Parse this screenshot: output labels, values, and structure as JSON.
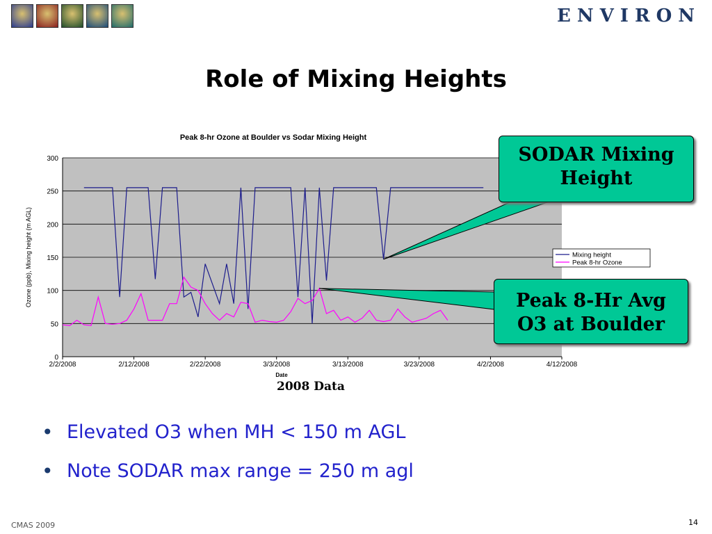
{
  "header": {
    "brand": "ENVIRON",
    "thumbnails": [
      {
        "name": "globe-thumbnail",
        "color": "#2a3b8f"
      },
      {
        "name": "dna-thumbnail",
        "color": "#8a1f1f"
      },
      {
        "name": "industry-thumbnail",
        "color": "#1f4d2a"
      },
      {
        "name": "ship-thumbnail",
        "color": "#1a4b7a"
      },
      {
        "name": "balloon-thumbnail",
        "color": "#1f6b6b"
      }
    ]
  },
  "slide": {
    "title": "Role of Mixing Heights",
    "caption": "2008 Data",
    "callout_sodar": [
      "SODAR Mixing",
      "Height"
    ],
    "callout_ozone": [
      "Peak 8-Hr Avg",
      "O3 at Boulder"
    ],
    "bullets": [
      "Elevated O3 when MH < 150 m AGL",
      "Note SODAR max range = 250 m agl"
    ],
    "footer_left": "CMAS 2009",
    "page_number": "14"
  },
  "chart_data": {
    "type": "line",
    "title": "Peak 8-hr Ozone at Boulder vs Sodar Mixing Height",
    "xlabel": "Date",
    "ylabel": "Ozone (ppb), Mixing height (m AGL)",
    "x_axis": "date",
    "xlim": [
      "2/2/2008",
      "4/12/2008"
    ],
    "xticks": [
      "2/2/2008",
      "2/12/2008",
      "2/22/2008",
      "3/3/2008",
      "3/13/2008",
      "3/23/2008",
      "4/2/2008",
      "4/12/2008"
    ],
    "ylim": [
      0,
      300
    ],
    "yticks": [
      0,
      50,
      100,
      150,
      200,
      250,
      300
    ],
    "grid": true,
    "legend": "right",
    "background": "#c0c0c0",
    "series": [
      {
        "name": "Mixing height",
        "color": "#1c1c8c",
        "points": [
          [
            "2/5/2008",
            255
          ],
          [
            "2/6/2008",
            255
          ],
          [
            "2/7/2008",
            255
          ],
          [
            "2/8/2008",
            255
          ],
          [
            "2/9/2008",
            255
          ],
          [
            "2/10/2008",
            90
          ],
          [
            "2/11/2008",
            255
          ],
          [
            "2/12/2008",
            255
          ],
          [
            "2/13/2008",
            255
          ],
          [
            "2/14/2008",
            255
          ],
          [
            "2/15/2008",
            117
          ],
          [
            "2/16/2008",
            255
          ],
          [
            "2/17/2008",
            255
          ],
          [
            "2/18/2008",
            255
          ],
          [
            "2/19/2008",
            90
          ],
          [
            "2/20/2008",
            97
          ],
          [
            "2/21/2008",
            60
          ],
          [
            "2/22/2008",
            140
          ],
          [
            "2/23/2008",
            110
          ],
          [
            "2/24/2008",
            80
          ],
          [
            "2/25/2008",
            140
          ],
          [
            "2/26/2008",
            80
          ],
          [
            "2/27/2008",
            255
          ],
          [
            "2/28/2008",
            72
          ],
          [
            "2/29/2008",
            255
          ],
          [
            "3/1/2008",
            255
          ],
          [
            "3/2/2008",
            255
          ],
          [
            "3/3/2008",
            255
          ],
          [
            "3/4/2008",
            255
          ],
          [
            "3/5/2008",
            255
          ],
          [
            "3/6/2008",
            90
          ],
          [
            "3/7/2008",
            255
          ],
          [
            "3/8/2008",
            50
          ],
          [
            "3/9/2008",
            255
          ],
          [
            "3/10/2008",
            115
          ],
          [
            "3/11/2008",
            255
          ],
          [
            "3/12/2008",
            255
          ],
          [
            "3/13/2008",
            255
          ],
          [
            "3/14/2008",
            255
          ],
          [
            "3/15/2008",
            255
          ],
          [
            "3/16/2008",
            255
          ],
          [
            "3/17/2008",
            255
          ],
          [
            "3/18/2008",
            147
          ],
          [
            "3/19/2008",
            255
          ],
          [
            "3/20/2008",
            255
          ],
          [
            "3/21/2008",
            255
          ],
          [
            "3/22/2008",
            255
          ],
          [
            "3/23/2008",
            255
          ],
          [
            "3/24/2008",
            255
          ],
          [
            "3/25/2008",
            255
          ],
          [
            "3/26/2008",
            255
          ],
          [
            "3/27/2008",
            255
          ],
          [
            "3/28/2008",
            255
          ],
          [
            "3/29/2008",
            255
          ],
          [
            "3/30/2008",
            255
          ],
          [
            "3/31/2008",
            255
          ],
          [
            "4/1/2008",
            255
          ]
        ]
      },
      {
        "name": "Peak 8-hr Ozone",
        "color": "#ff00ff",
        "points": [
          [
            "2/2/2008",
            48
          ],
          [
            "2/3/2008",
            47
          ],
          [
            "2/4/2008",
            55
          ],
          [
            "2/5/2008",
            48
          ],
          [
            "2/6/2008",
            47
          ],
          [
            "2/7/2008",
            90
          ],
          [
            "2/8/2008",
            50
          ],
          [
            "2/9/2008",
            49
          ],
          [
            "2/10/2008",
            50
          ],
          [
            "2/11/2008",
            55
          ],
          [
            "2/12/2008",
            72
          ],
          [
            "2/13/2008",
            95
          ],
          [
            "2/14/2008",
            55
          ],
          [
            "2/15/2008",
            55
          ],
          [
            "2/16/2008",
            55
          ],
          [
            "2/17/2008",
            80
          ],
          [
            "2/18/2008",
            80
          ],
          [
            "2/19/2008",
            120
          ],
          [
            "2/20/2008",
            105
          ],
          [
            "2/21/2008",
            100
          ],
          [
            "2/22/2008",
            80
          ],
          [
            "2/23/2008",
            65
          ],
          [
            "2/24/2008",
            55
          ],
          [
            "2/25/2008",
            65
          ],
          [
            "2/26/2008",
            60
          ],
          [
            "2/27/2008",
            82
          ],
          [
            "2/28/2008",
            80
          ],
          [
            "2/29/2008",
            52
          ],
          [
            "3/1/2008",
            55
          ],
          [
            "3/2/2008",
            53
          ],
          [
            "3/3/2008",
            52
          ],
          [
            "3/4/2008",
            55
          ],
          [
            "3/5/2008",
            68
          ],
          [
            "3/6/2008",
            88
          ],
          [
            "3/7/2008",
            80
          ],
          [
            "3/8/2008",
            85
          ],
          [
            "3/9/2008",
            103
          ],
          [
            "3/10/2008",
            65
          ],
          [
            "3/11/2008",
            70
          ],
          [
            "3/12/2008",
            55
          ],
          [
            "3/13/2008",
            60
          ],
          [
            "3/14/2008",
            52
          ],
          [
            "3/15/2008",
            58
          ],
          [
            "3/16/2008",
            70
          ],
          [
            "3/17/2008",
            55
          ],
          [
            "3/18/2008",
            53
          ],
          [
            "3/19/2008",
            55
          ],
          [
            "3/20/2008",
            72
          ],
          [
            "3/21/2008",
            60
          ],
          [
            "3/22/2008",
            52
          ],
          [
            "3/23/2008",
            55
          ],
          [
            "3/24/2008",
            58
          ],
          [
            "3/25/2008",
            65
          ],
          [
            "3/26/2008",
            70
          ],
          [
            "3/27/2008",
            55
          ]
        ]
      }
    ]
  }
}
